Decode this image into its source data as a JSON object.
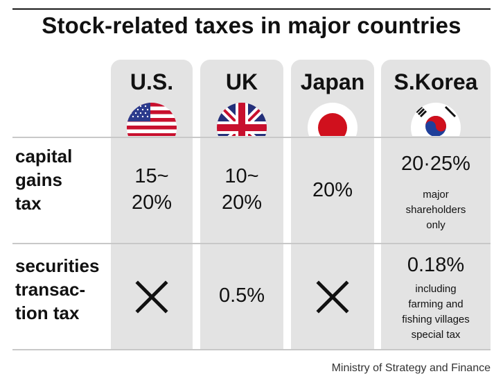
{
  "title": "Stock-related taxes in major countries",
  "countries": [
    {
      "name": "U.S.",
      "flag_icon": "us-flag-icon"
    },
    {
      "name": "UK",
      "flag_icon": "uk-flag-icon"
    },
    {
      "name": "Japan",
      "flag_icon": "japan-flag-icon"
    },
    {
      "name": "S.Korea",
      "flag_icon": "south-korea-flag-icon"
    }
  ],
  "rows": [
    {
      "label_lines": [
        "capital",
        "gains",
        "tax"
      ],
      "us": [
        "15~",
        "20%"
      ],
      "uk": [
        "10~",
        "20%"
      ],
      "japan": "20%",
      "korea": {
        "value": "20·25%",
        "note_lines": [
          "major",
          "shareholders",
          "only"
        ]
      }
    },
    {
      "label_lines": [
        "securities",
        "transac-",
        "tion tax"
      ],
      "us": "none-cross-icon",
      "uk": "0.5%",
      "japan": "none-cross-icon",
      "korea": {
        "value": "0.18%",
        "note_lines": [
          "including",
          "farming and",
          "fishing villages",
          "special tax"
        ]
      }
    }
  ],
  "source": "Ministry of Strategy and Finance",
  "colors": {
    "column_bg": "#e3e3e3",
    "rule": "#c8c8c8",
    "text": "#111111"
  }
}
